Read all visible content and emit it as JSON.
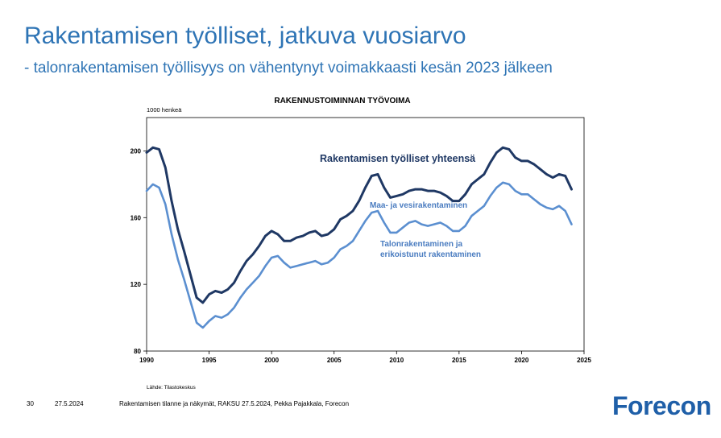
{
  "slide": {
    "title": "Rakentamisen työlliset, jatkuva vuosiarvo",
    "subtitle": "- talonrakentamisen työllisyys on vähentynyt voimakkaasti kesän 2023 jälkeen"
  },
  "footer": {
    "page_number": "30",
    "date": "27.5.2024",
    "source_text": "Rakentamisen tilanne ja näkymät, RAKSU 27.5.2024, Pekka Pajakkala, Forecon",
    "logo_text": "Forecon"
  },
  "colors": {
    "title": "#2e74b5",
    "series_total": "#1f3864",
    "series_sub": "#5b8fd0",
    "logo": "#1f5fa8"
  },
  "chart_data": {
    "type": "line",
    "title": "RAKENNUSTOIMINNAN TYÖVOIMA",
    "ylabel": "1000 henkeä",
    "source_note": "Lähde: Tilastokeskus",
    "xlim": [
      1990,
      2025
    ],
    "ylim": [
      80,
      220
    ],
    "xticks": [
      1990,
      1995,
      2000,
      2005,
      2010,
      2015,
      2020,
      2025
    ],
    "yticks": [
      80,
      120,
      160,
      200
    ],
    "grid": false,
    "annotations": [
      "Rakentamisen työlliset yhteensä",
      "Maa- ja vesirakentaminen",
      "Talonrakentaminen ja",
      "erikoistunut rakentaminen"
    ],
    "series": [
      {
        "name": "Rakentamisen työlliset yhteensä",
        "x": [
          1990,
          1990.5,
          1991,
          1991.5,
          1992,
          1992.5,
          1993,
          1993.5,
          1994,
          1994.5,
          1995,
          1995.5,
          1996,
          1996.5,
          1997,
          1997.5,
          1998,
          1998.5,
          1999,
          1999.5,
          2000,
          2000.5,
          2001,
          2001.5,
          2002,
          2002.5,
          2003,
          2003.5,
          2004,
          2004.5,
          2005,
          2005.5,
          2006,
          2006.5,
          2007,
          2007.5,
          2008,
          2008.5,
          2009,
          2009.5,
          2010,
          2010.5,
          2011,
          2011.5,
          2012,
          2012.5,
          2013,
          2013.5,
          2014,
          2014.5,
          2015,
          2015.5,
          2016,
          2016.5,
          2017,
          2017.5,
          2018,
          2018.5,
          2019,
          2019.5,
          2020,
          2020.5,
          2021,
          2021.5,
          2022,
          2022.5,
          2023,
          2023.5,
          2024
        ],
        "values": [
          199,
          202,
          201,
          190,
          170,
          153,
          140,
          126,
          112,
          109,
          114,
          116,
          115,
          117,
          121,
          128,
          134,
          138,
          143,
          149,
          152,
          150,
          146,
          146,
          148,
          149,
          151,
          152,
          149,
          150,
          153,
          159,
          161,
          164,
          170,
          178,
          185,
          186,
          178,
          172,
          173,
          174,
          176,
          177,
          177,
          176,
          176,
          175,
          173,
          170,
          170,
          174,
          180,
          183,
          186,
          193,
          199,
          202,
          201,
          196,
          194,
          194,
          192,
          189,
          186,
          184,
          186,
          185,
          177
        ]
      },
      {
        "name": "Maa- ja vesirakentaminen",
        "x": [
          1990,
          1990.5,
          1991,
          1991.5,
          1992,
          1992.5,
          1993,
          1993.5,
          1994,
          1994.5,
          1995,
          1995.5,
          1996,
          1996.5,
          1997,
          1997.5,
          1998,
          1998.5,
          1999,
          1999.5,
          2000,
          2000.5,
          2001,
          2001.5,
          2002,
          2002.5,
          2003,
          2003.5,
          2004,
          2004.5,
          2005,
          2005.5,
          2006,
          2006.5,
          2007,
          2007.5,
          2008,
          2008.5,
          2009,
          2009.5,
          2010,
          2010.5,
          2011,
          2011.5,
          2012,
          2012.5,
          2013,
          2013.5,
          2014,
          2014.5,
          2015,
          2015.5,
          2016,
          2016.5,
          2017,
          2017.5,
          2018,
          2018.5,
          2019,
          2019.5,
          2020,
          2020.5,
          2021,
          2021.5,
          2022,
          2022.5,
          2023,
          2023.5,
          2024
        ],
        "values": [
          176,
          180,
          178,
          168,
          150,
          135,
          123,
          110,
          97,
          94,
          98,
          101,
          100,
          102,
          106,
          112,
          117,
          121,
          125,
          131,
          136,
          137,
          133,
          130,
          131,
          132,
          133,
          134,
          132,
          133,
          136,
          141,
          143,
          146,
          152,
          158,
          163,
          164,
          157,
          151,
          151,
          154,
          157,
          158,
          156,
          155,
          156,
          157,
          155,
          152,
          152,
          155,
          161,
          164,
          167,
          173,
          178,
          181,
          180,
          176,
          174,
          174,
          171,
          168,
          166,
          165,
          167,
          164,
          156
        ]
      }
    ]
  }
}
